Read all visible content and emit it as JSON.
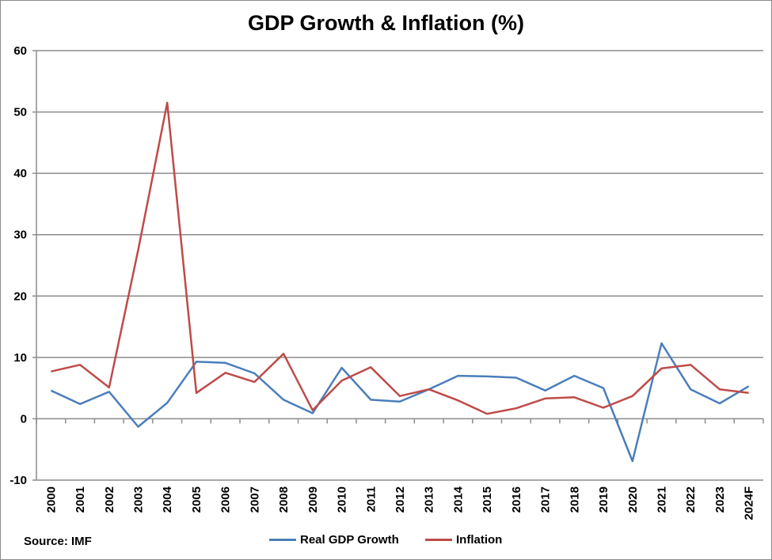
{
  "chart_data": {
    "type": "line",
    "title": "GDP Growth & Inflation (%)",
    "source": "Source: IMF",
    "categories": [
      "2000",
      "2001",
      "2002",
      "2003",
      "2004",
      "2005",
      "2006",
      "2007",
      "2008",
      "2009",
      "2010",
      "2011",
      "2012",
      "2013",
      "2014",
      "2015",
      "2016",
      "2017",
      "2018",
      "2019",
      "2020",
      "2021",
      "2022",
      "2023",
      "2024F"
    ],
    "ylim": [
      -10,
      60
    ],
    "yticks": [
      -10,
      0,
      10,
      20,
      30,
      40,
      50,
      60
    ],
    "grid": true,
    "legend_position": "bottom",
    "series": [
      {
        "name": "Real GDP Growth",
        "color": "#4a7ebb",
        "values": [
          4.6,
          2.4,
          4.4,
          -1.3,
          2.6,
          9.3,
          9.1,
          7.4,
          3.1,
          0.9,
          8.3,
          3.1,
          2.8,
          4.8,
          7.0,
          6.9,
          6.7,
          4.6,
          7.0,
          5.0,
          -6.9,
          12.3,
          4.8,
          2.5,
          5.3
        ]
      },
      {
        "name": "Inflation",
        "color": "#be4b48",
        "values": [
          7.7,
          8.8,
          5.1,
          27.5,
          51.5,
          4.2,
          7.5,
          6.0,
          10.6,
          1.4,
          6.2,
          8.4,
          3.7,
          4.8,
          3.0,
          0.8,
          1.7,
          3.3,
          3.5,
          1.8,
          3.7,
          8.2,
          8.8,
          4.8,
          4.2
        ]
      }
    ]
  }
}
